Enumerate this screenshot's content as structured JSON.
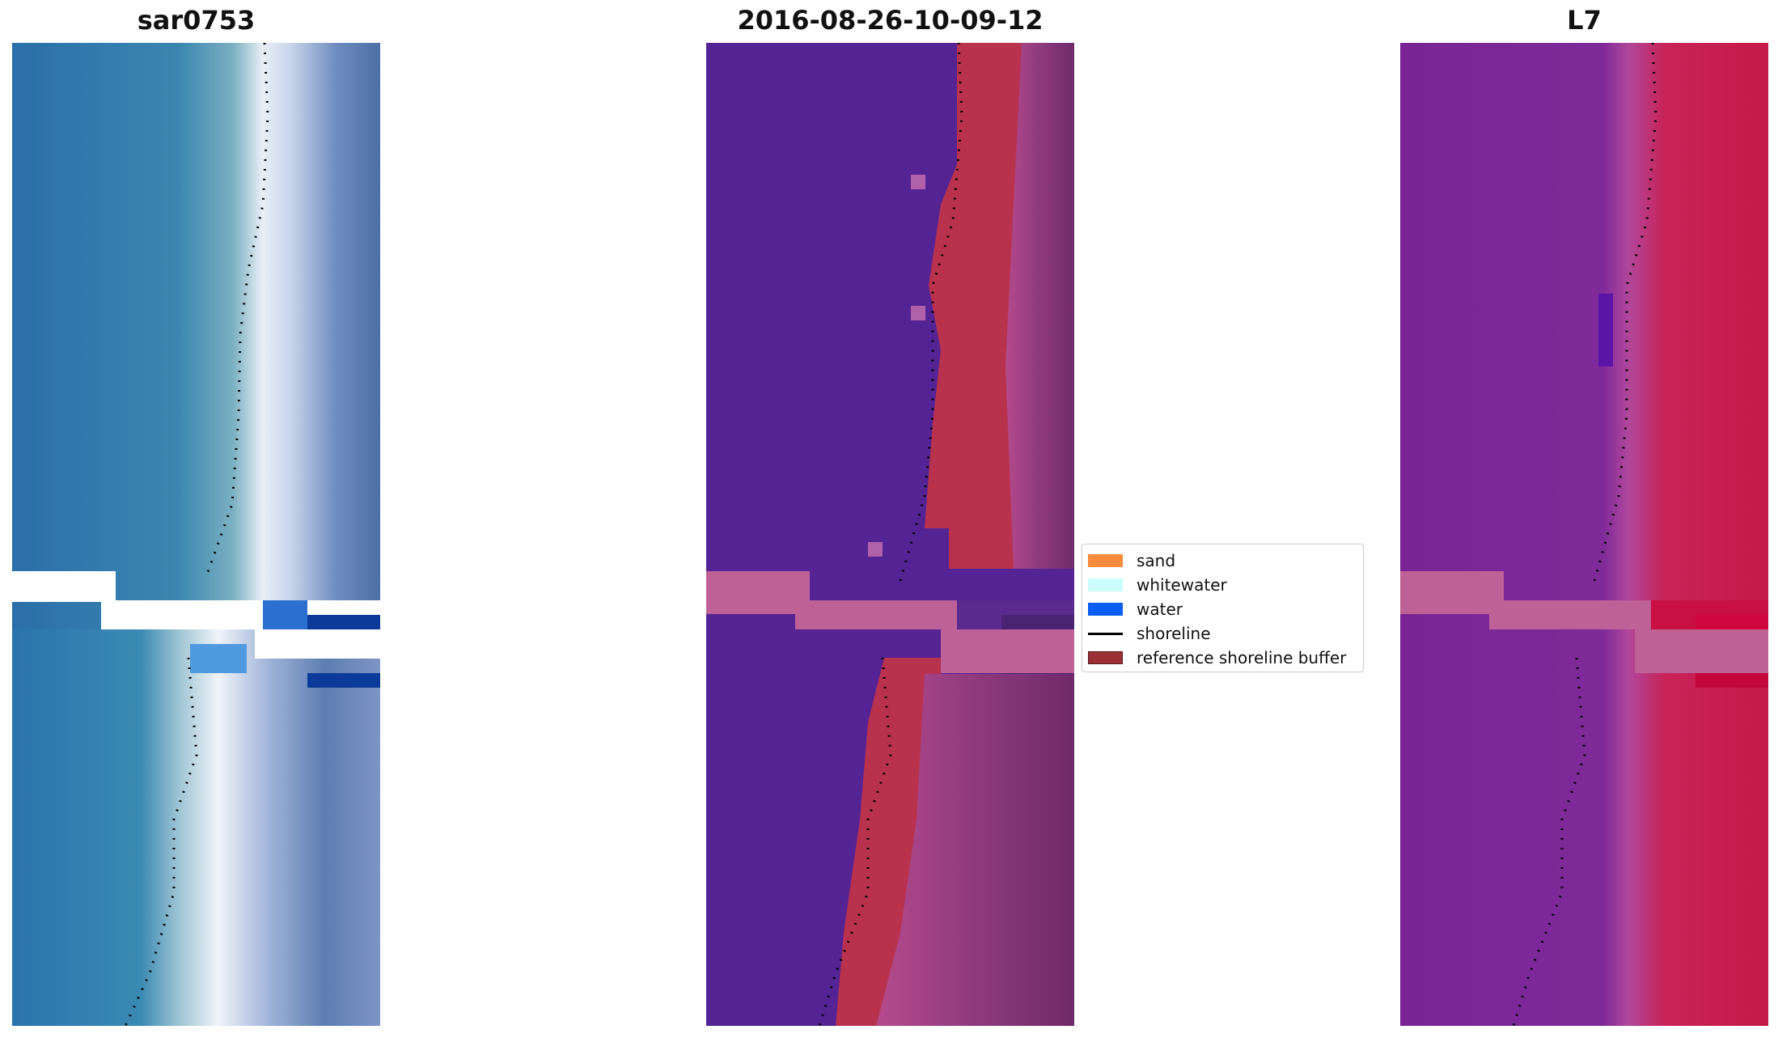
{
  "panels": [
    {
      "title": "sar0753"
    },
    {
      "title": "2016-08-26-10-09-12"
    },
    {
      "title": "L7"
    }
  ],
  "legend": {
    "items": [
      {
        "label": "sand",
        "color": "#f98b3c",
        "kind": "patch"
      },
      {
        "label": "whitewater",
        "color": "#ccfcfc",
        "kind": "patch"
      },
      {
        "label": "water",
        "color": "#0a5ef2",
        "kind": "patch"
      },
      {
        "label": "shoreline",
        "color": "#000000",
        "kind": "line"
      },
      {
        "label": "reference shoreline buffer",
        "color": "#9b2f36",
        "kind": "patch"
      }
    ]
  },
  "colors": {
    "water_class": "#542394",
    "buffer_overlay": "#c4318a",
    "rgb_water": "#2f78b3",
    "rgb_beach": "#dfe6f3",
    "rgb_land": "#5b7aaa",
    "false_water": "#7c2396",
    "false_land": "#cc1b4d",
    "nodata_band": "#c06599"
  }
}
